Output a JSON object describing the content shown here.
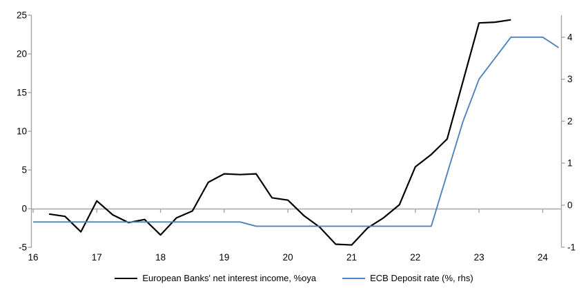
{
  "chart_data": {
    "type": "line",
    "title": "",
    "x_axis": {
      "ticks": [
        16,
        17,
        18,
        19,
        20,
        21,
        22,
        23,
        24
      ],
      "tick_labels": [
        "16",
        "17",
        "18",
        "19",
        "20",
        "21",
        "22",
        "23",
        "24"
      ],
      "range": [
        16,
        24.3
      ],
      "grid": false
    },
    "left_axis": {
      "ticks": [
        -5,
        0,
        5,
        10,
        15,
        20,
        25
      ],
      "tick_labels": [
        "-5",
        "0",
        "5",
        "10",
        "15",
        "20",
        "25"
      ],
      "range": [
        -5,
        25
      ],
      "zero_line": true
    },
    "right_axis": {
      "ticks": [
        -1,
        0,
        1,
        2,
        3,
        4
      ],
      "tick_labels": [
        "-1",
        "0",
        "1",
        "2",
        "3",
        "4"
      ],
      "range": [
        -1.1,
        4.5
      ]
    },
    "legend_position": "bottom-center",
    "series": [
      {
        "id": "nii",
        "name": "European Banks' net interest income, %oya",
        "axis": "left",
        "color": "#000000",
        "x": [
          16.25,
          16.5,
          16.75,
          17.0,
          17.25,
          17.5,
          17.75,
          18.0,
          18.25,
          18.5,
          18.75,
          19.0,
          19.25,
          19.5,
          19.75,
          20.0,
          20.25,
          20.5,
          20.75,
          21.0,
          21.25,
          21.5,
          21.75,
          22.0,
          22.25,
          22.5,
          22.75,
          23.0,
          23.25,
          23.5
        ],
        "values": [
          -0.7,
          -1.0,
          -3.0,
          1.0,
          -0.8,
          -1.8,
          -1.4,
          -3.4,
          -1.2,
          -0.3,
          3.4,
          4.5,
          4.4,
          4.5,
          1.4,
          1.1,
          -0.9,
          -2.4,
          -4.6,
          -4.7,
          -2.5,
          -1.2,
          0.5,
          5.4,
          7.0,
          9.0,
          16.5,
          24.0,
          24.1,
          24.4
        ]
      },
      {
        "id": "ecb-deposit-rate",
        "name": "ECB Deposit rate (%, rhs)",
        "axis": "right",
        "color": "#4E81BD",
        "x": [
          16.0,
          16.25,
          16.5,
          16.75,
          17.0,
          17.25,
          17.5,
          17.75,
          18.0,
          18.25,
          18.5,
          18.75,
          19.0,
          19.25,
          19.5,
          19.75,
          20.0,
          20.25,
          20.5,
          20.75,
          21.0,
          21.25,
          21.5,
          21.75,
          22.0,
          22.25,
          22.5,
          22.75,
          23.0,
          23.25,
          23.5,
          23.75,
          24.0,
          24.25
        ],
        "values": [
          -0.4,
          -0.4,
          -0.4,
          -0.4,
          -0.4,
          -0.4,
          -0.4,
          -0.4,
          -0.4,
          -0.4,
          -0.4,
          -0.4,
          -0.4,
          -0.4,
          -0.5,
          -0.5,
          -0.5,
          -0.5,
          -0.5,
          -0.5,
          -0.5,
          -0.5,
          -0.5,
          -0.5,
          -0.5,
          -0.5,
          0.75,
          2.0,
          3.0,
          3.5,
          4.0,
          4.0,
          4.0,
          3.75
        ]
      }
    ]
  },
  "colors": {
    "axis": "#A6A6A6",
    "zero_line": "#A6A6A6",
    "series_black": "#000000",
    "series_blue": "#4E81BD",
    "text": "#000000",
    "background": "#FFFFFF"
  }
}
